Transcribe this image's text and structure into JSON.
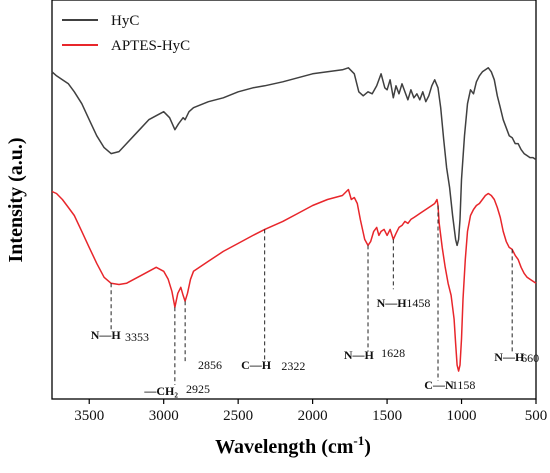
{
  "chart_data": {
    "type": "line",
    "xlabel": "Wavelength (cm",
    "xlabel_sup": "-1",
    "xlabel_close": ")",
    "ylabel": "Intensity (a.u.)",
    "xlim": [
      3750,
      500
    ],
    "x_reversed": true,
    "xticks": [
      3500,
      3000,
      2500,
      2000,
      1500,
      1000,
      500
    ],
    "yticks_shown": false,
    "ylim": [
      0,
      1
    ],
    "grid": false,
    "legend_position": "top-left",
    "series": [
      {
        "name": "HyC",
        "color": "#404040",
        "points": [
          [
            3750,
            0.82
          ],
          [
            3720,
            0.81
          ],
          [
            3680,
            0.8
          ],
          [
            3640,
            0.79
          ],
          [
            3600,
            0.77
          ],
          [
            3550,
            0.74
          ],
          [
            3500,
            0.7
          ],
          [
            3450,
            0.66
          ],
          [
            3400,
            0.63
          ],
          [
            3353,
            0.615
          ],
          [
            3300,
            0.62
          ],
          [
            3250,
            0.64
          ],
          [
            3200,
            0.66
          ],
          [
            3150,
            0.68
          ],
          [
            3100,
            0.7
          ],
          [
            3050,
            0.71
          ],
          [
            3000,
            0.72
          ],
          [
            2960,
            0.705
          ],
          [
            2925,
            0.675
          ],
          [
            2900,
            0.69
          ],
          [
            2870,
            0.705
          ],
          [
            2856,
            0.7
          ],
          [
            2830,
            0.72
          ],
          [
            2800,
            0.73
          ],
          [
            2700,
            0.745
          ],
          [
            2600,
            0.755
          ],
          [
            2500,
            0.77
          ],
          [
            2400,
            0.78
          ],
          [
            2322,
            0.785
          ],
          [
            2200,
            0.795
          ],
          [
            2100,
            0.805
          ],
          [
            2000,
            0.815
          ],
          [
            1900,
            0.82
          ],
          [
            1800,
            0.825
          ],
          [
            1760,
            0.83
          ],
          [
            1720,
            0.815
          ],
          [
            1690,
            0.77
          ],
          [
            1660,
            0.76
          ],
          [
            1628,
            0.77
          ],
          [
            1600,
            0.765
          ],
          [
            1570,
            0.785
          ],
          [
            1540,
            0.815
          ],
          [
            1515,
            0.78
          ],
          [
            1500,
            0.775
          ],
          [
            1480,
            0.8
          ],
          [
            1458,
            0.755
          ],
          [
            1440,
            0.785
          ],
          [
            1420,
            0.765
          ],
          [
            1400,
            0.79
          ],
          [
            1380,
            0.77
          ],
          [
            1360,
            0.75
          ],
          [
            1340,
            0.775
          ],
          [
            1320,
            0.755
          ],
          [
            1300,
            0.765
          ],
          [
            1280,
            0.75
          ],
          [
            1260,
            0.77
          ],
          [
            1240,
            0.745
          ],
          [
            1220,
            0.76
          ],
          [
            1200,
            0.785
          ],
          [
            1180,
            0.8
          ],
          [
            1158,
            0.78
          ],
          [
            1140,
            0.73
          ],
          [
            1120,
            0.65
          ],
          [
            1100,
            0.58
          ],
          [
            1080,
            0.53
          ],
          [
            1060,
            0.46
          ],
          [
            1040,
            0.4
          ],
          [
            1030,
            0.385
          ],
          [
            1020,
            0.4
          ],
          [
            1010,
            0.45
          ],
          [
            1000,
            0.55
          ],
          [
            980,
            0.66
          ],
          [
            960,
            0.74
          ],
          [
            940,
            0.775
          ],
          [
            920,
            0.765
          ],
          [
            900,
            0.795
          ],
          [
            880,
            0.81
          ],
          [
            860,
            0.82
          ],
          [
            840,
            0.825
          ],
          [
            820,
            0.83
          ],
          [
            800,
            0.82
          ],
          [
            780,
            0.8
          ],
          [
            760,
            0.76
          ],
          [
            740,
            0.73
          ],
          [
            720,
            0.7
          ],
          [
            700,
            0.68
          ],
          [
            680,
            0.66
          ],
          [
            660,
            0.655
          ],
          [
            640,
            0.64
          ],
          [
            620,
            0.64
          ],
          [
            600,
            0.625
          ],
          [
            580,
            0.615
          ],
          [
            560,
            0.61
          ],
          [
            540,
            0.605
          ],
          [
            520,
            0.605
          ],
          [
            500,
            0.6
          ]
        ]
      },
      {
        "name": "APTES-HyC",
        "color": "#e8262b",
        "points": [
          [
            3750,
            0.52
          ],
          [
            3720,
            0.515
          ],
          [
            3680,
            0.5
          ],
          [
            3640,
            0.48
          ],
          [
            3600,
            0.46
          ],
          [
            3550,
            0.42
          ],
          [
            3500,
            0.38
          ],
          [
            3450,
            0.34
          ],
          [
            3400,
            0.305
          ],
          [
            3353,
            0.29
          ],
          [
            3300,
            0.287
          ],
          [
            3250,
            0.29
          ],
          [
            3200,
            0.3
          ],
          [
            3150,
            0.31
          ],
          [
            3100,
            0.32
          ],
          [
            3050,
            0.33
          ],
          [
            3000,
            0.32
          ],
          [
            2970,
            0.3
          ],
          [
            2945,
            0.27
          ],
          [
            2925,
            0.23
          ],
          [
            2905,
            0.265
          ],
          [
            2885,
            0.28
          ],
          [
            2870,
            0.26
          ],
          [
            2856,
            0.245
          ],
          [
            2840,
            0.265
          ],
          [
            2820,
            0.3
          ],
          [
            2800,
            0.32
          ],
          [
            2700,
            0.345
          ],
          [
            2600,
            0.37
          ],
          [
            2500,
            0.39
          ],
          [
            2400,
            0.41
          ],
          [
            2322,
            0.425
          ],
          [
            2200,
            0.445
          ],
          [
            2100,
            0.465
          ],
          [
            2000,
            0.485
          ],
          [
            1900,
            0.5
          ],
          [
            1800,
            0.51
          ],
          [
            1760,
            0.525
          ],
          [
            1740,
            0.5
          ],
          [
            1720,
            0.505
          ],
          [
            1700,
            0.49
          ],
          [
            1680,
            0.45
          ],
          [
            1650,
            0.4
          ],
          [
            1628,
            0.385
          ],
          [
            1610,
            0.395
          ],
          [
            1590,
            0.42
          ],
          [
            1570,
            0.43
          ],
          [
            1555,
            0.41
          ],
          [
            1540,
            0.42
          ],
          [
            1520,
            0.425
          ],
          [
            1500,
            0.41
          ],
          [
            1480,
            0.425
          ],
          [
            1458,
            0.4
          ],
          [
            1440,
            0.415
          ],
          [
            1420,
            0.43
          ],
          [
            1400,
            0.435
          ],
          [
            1380,
            0.445
          ],
          [
            1360,
            0.44
          ],
          [
            1340,
            0.45
          ],
          [
            1320,
            0.455
          ],
          [
            1300,
            0.46
          ],
          [
            1280,
            0.465
          ],
          [
            1260,
            0.47
          ],
          [
            1240,
            0.475
          ],
          [
            1220,
            0.48
          ],
          [
            1200,
            0.485
          ],
          [
            1180,
            0.49
          ],
          [
            1165,
            0.5
          ],
          [
            1158,
            0.485
          ],
          [
            1150,
            0.44
          ],
          [
            1130,
            0.38
          ],
          [
            1110,
            0.33
          ],
          [
            1090,
            0.29
          ],
          [
            1070,
            0.26
          ],
          [
            1050,
            0.2
          ],
          [
            1040,
            0.14
          ],
          [
            1030,
            0.085
          ],
          [
            1020,
            0.07
          ],
          [
            1010,
            0.085
          ],
          [
            1000,
            0.15
          ],
          [
            990,
            0.25
          ],
          [
            975,
            0.35
          ],
          [
            960,
            0.42
          ],
          [
            940,
            0.46
          ],
          [
            920,
            0.475
          ],
          [
            900,
            0.485
          ],
          [
            880,
            0.49
          ],
          [
            860,
            0.5
          ],
          [
            840,
            0.51
          ],
          [
            820,
            0.515
          ],
          [
            800,
            0.51
          ],
          [
            780,
            0.5
          ],
          [
            760,
            0.48
          ],
          [
            740,
            0.455
          ],
          [
            720,
            0.42
          ],
          [
            700,
            0.395
          ],
          [
            680,
            0.38
          ],
          [
            660,
            0.375
          ],
          [
            640,
            0.36
          ],
          [
            620,
            0.35
          ],
          [
            600,
            0.33
          ],
          [
            580,
            0.315
          ],
          [
            560,
            0.305
          ],
          [
            540,
            0.3
          ],
          [
            520,
            0.295
          ],
          [
            500,
            0.29
          ]
        ]
      }
    ],
    "annotations": [
      {
        "group": "NH-3353",
        "x": 3353,
        "y_top": 0.29,
        "y_bottom": 0.17,
        "label": "N—H",
        "value": "3353",
        "label_x": 3490,
        "label_y": 0.15,
        "value_x": 3260,
        "value_y": 0.145
      },
      {
        "group": "CH2-2925",
        "x": 2925,
        "y_top": 0.23,
        "y_bottom": 0.035,
        "label": "—CH₂",
        "value": "2925",
        "label_x": 3130,
        "label_y": 0.01,
        "value_x": 2850,
        "value_y": 0.015
      },
      {
        "group": "CH2-2856",
        "x": 2856,
        "y_top": 0.245,
        "y_bottom": 0.095,
        "label": "",
        "value": "2856",
        "label_x": 0,
        "label_y": 0,
        "value_x": 2770,
        "value_y": 0.075
      },
      {
        "group": "CH-2322",
        "x": 2322,
        "y_top": 0.425,
        "y_bottom": 0.095,
        "label": "C—H",
        "value": "2322",
        "label_x": 2480,
        "label_y": 0.075,
        "value_x": 2210,
        "value_y": 0.073
      },
      {
        "group": "NH-1628",
        "x": 1628,
        "y_top": 0.385,
        "y_bottom": 0.12,
        "label": "N—H",
        "value": "1628",
        "label_x": 1790,
        "label_y": 0.1,
        "value_x": 1540,
        "value_y": 0.105
      },
      {
        "group": "NH-1458",
        "x": 1458,
        "y_top": 0.4,
        "y_bottom": 0.275,
        "label": "N—H",
        "value": "1458",
        "label_x": 1570,
        "label_y": 0.23,
        "value_x": 1370,
        "value_y": 0.23
      },
      {
        "group": "CN-1158",
        "x": 1158,
        "y_top": 0.485,
        "y_bottom": 0.045,
        "label": "C—N",
        "value": "1158",
        "label_x": 1250,
        "label_y": 0.025,
        "value_x": 1065,
        "value_y": 0.025
      },
      {
        "group": "NH-660",
        "x": 660,
        "y_top": 0.375,
        "y_bottom": 0.115,
        "label": "N—H",
        "value": "660",
        "label_x": 780,
        "label_y": 0.095,
        "value_x": 600,
        "value_y": 0.093
      }
    ]
  }
}
